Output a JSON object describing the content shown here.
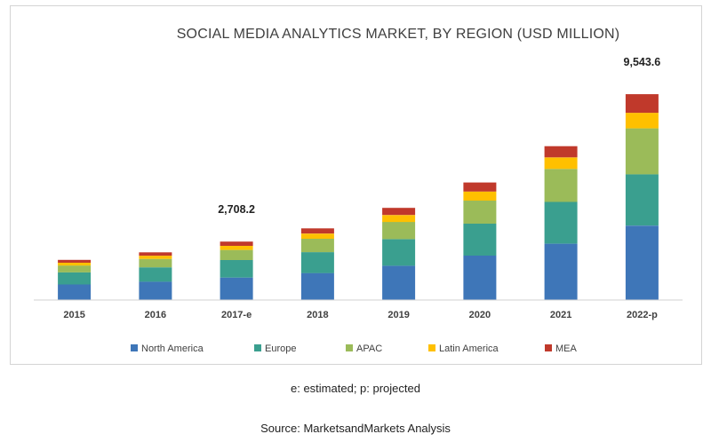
{
  "footnote": "e: estimated; p: projected",
  "source": "Source: MarketsandMarkets Analysis",
  "chart_data": {
    "type": "bar",
    "stacked": true,
    "title": "SOCIAL MEDIA ANALYTICS MARKET, BY REGION (USD MILLION)",
    "xlabel": "",
    "ylabel": "",
    "ylim": [
      0,
      10000
    ],
    "grid": false,
    "legend_position": "bottom",
    "categories": [
      "2015",
      "2016",
      "2017-e",
      "2018",
      "2019",
      "2020",
      "2021",
      "2022-p"
    ],
    "series": [
      {
        "name": "North America",
        "color": "#3e76b8",
        "values": [
          720,
          850,
          1040,
          1250,
          1590,
          2060,
          2610,
          3450
        ]
      },
      {
        "name": "Europe",
        "color": "#3a9f8f",
        "values": [
          560,
          665,
          810,
          970,
          1230,
          1480,
          1940,
          2380
        ]
      },
      {
        "name": "APAC",
        "color": "#9bbb59",
        "values": [
          320,
          390,
          470,
          620,
          800,
          1070,
          1530,
          2130
        ]
      },
      {
        "name": "Latin America",
        "color": "#ffc000",
        "values": [
          130,
          150,
          190,
          240,
          320,
          420,
          530,
          720
        ]
      },
      {
        "name": "MEA",
        "color": "#c0392b",
        "values": [
          130,
          155,
          198,
          240,
          330,
          420,
          520,
          863.6
        ]
      }
    ],
    "data_labels": [
      {
        "category": "2017-e",
        "text": "2,708.2"
      },
      {
        "category": "2022-p",
        "text": "9,543.6"
      }
    ]
  }
}
